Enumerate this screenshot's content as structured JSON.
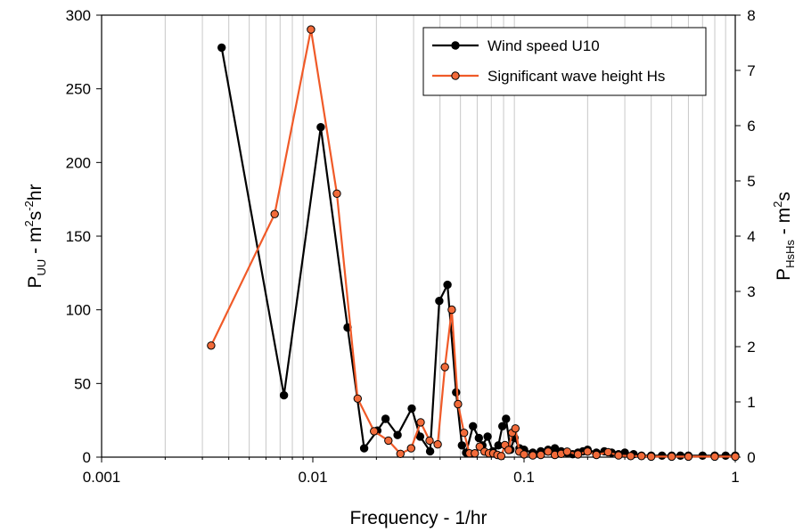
{
  "chart_data": {
    "type": "line",
    "x_scale": "log",
    "xlim": [
      0.001,
      1
    ],
    "ylim_left": [
      0,
      300
    ],
    "ylim_right": [
      0,
      8
    ],
    "grid": "vertical minor lines on x",
    "legend_position": "top-right",
    "x_ticks": [
      "0.001",
      "0.01",
      "0.1",
      "1"
    ],
    "y_left_ticks": [
      "0",
      "50",
      "100",
      "150",
      "200",
      "250",
      "300"
    ],
    "y_right_ticks": [
      "0",
      "1",
      "2",
      "3",
      "4",
      "5",
      "6",
      "7",
      "8"
    ],
    "xlabel": "Frequency - 1/hr",
    "ylabel_left": {
      "base": "P",
      "sub": "UU",
      "text": " - m",
      "sup1": "2",
      "mid": "s",
      "sup2": "-2",
      "end": "hr"
    },
    "ylabel_right": {
      "base": "P",
      "sub": "HsHs",
      "text": " - m",
      "sup1": "2",
      "end": "s"
    },
    "series": [
      {
        "name": "Wind speed U10",
        "color": "#000000",
        "marker_fill": "#000000",
        "axis": "left",
        "x": [
          0.0037,
          0.0073,
          0.0109,
          0.0146,
          0.0175,
          0.0202,
          0.0221,
          0.0252,
          0.0294,
          0.0322,
          0.0359,
          0.0397,
          0.0434,
          0.0477,
          0.0508,
          0.0532,
          0.0573,
          0.0611,
          0.0635,
          0.0672,
          0.0712,
          0.0756,
          0.079,
          0.0822,
          0.0862,
          0.0901,
          0.0952,
          0.1,
          0.11,
          0.12,
          0.13,
          0.14,
          0.15,
          0.16,
          0.17,
          0.18,
          0.19,
          0.2,
          0.22,
          0.24,
          0.26,
          0.28,
          0.3,
          0.33,
          0.36,
          0.4,
          0.45,
          0.5,
          0.55,
          0.6,
          0.7,
          0.8,
          0.9,
          1.0
        ],
        "values": [
          278,
          42,
          224,
          88,
          6,
          18,
          26,
          15,
          33,
          14,
          4,
          106,
          117,
          44,
          8,
          3,
          21,
          13,
          8,
          14,
          4,
          8,
          21,
          26,
          5,
          13,
          6,
          5,
          3,
          4,
          5,
          6,
          4,
          3,
          2,
          3,
          4,
          5,
          3,
          4,
          3,
          2,
          3,
          2,
          1,
          1,
          1,
          1,
          1,
          1,
          1,
          1,
          1,
          1
        ]
      },
      {
        "name": "Significant wave height Hs",
        "color": "#f05a28",
        "marker_fill": "#f26b3a",
        "axis": "right",
        "x": [
          0.0033,
          0.0066,
          0.0098,
          0.013,
          0.0163,
          0.0195,
          0.0228,
          0.026,
          0.0292,
          0.0324,
          0.0357,
          0.039,
          0.0422,
          0.0455,
          0.0487,
          0.052,
          0.0552,
          0.0585,
          0.0617,
          0.065,
          0.0682,
          0.0715,
          0.0748,
          0.078,
          0.0812,
          0.0845,
          0.0878,
          0.091,
          0.095,
          0.1,
          0.11,
          0.12,
          0.13,
          0.14,
          0.15,
          0.16,
          0.18,
          0.2,
          0.22,
          0.25,
          0.28,
          0.32,
          0.36,
          0.4,
          0.5,
          0.6,
          0.8,
          1.0
        ],
        "values": [
          2.02,
          4.4,
          7.74,
          4.77,
          1.06,
          0.47,
          0.3,
          0.06,
          0.16,
          0.63,
          0.3,
          0.23,
          1.63,
          2.67,
          0.96,
          0.44,
          0.07,
          0.07,
          0.19,
          0.1,
          0.07,
          0.07,
          0.04,
          0.02,
          0.22,
          0.13,
          0.44,
          0.52,
          0.1,
          0.05,
          0.03,
          0.04,
          0.1,
          0.04,
          0.06,
          0.1,
          0.05,
          0.1,
          0.04,
          0.09,
          0.03,
          0.02,
          0.02,
          0.01,
          0.01,
          0.01,
          0.01,
          0.01
        ]
      }
    ]
  }
}
